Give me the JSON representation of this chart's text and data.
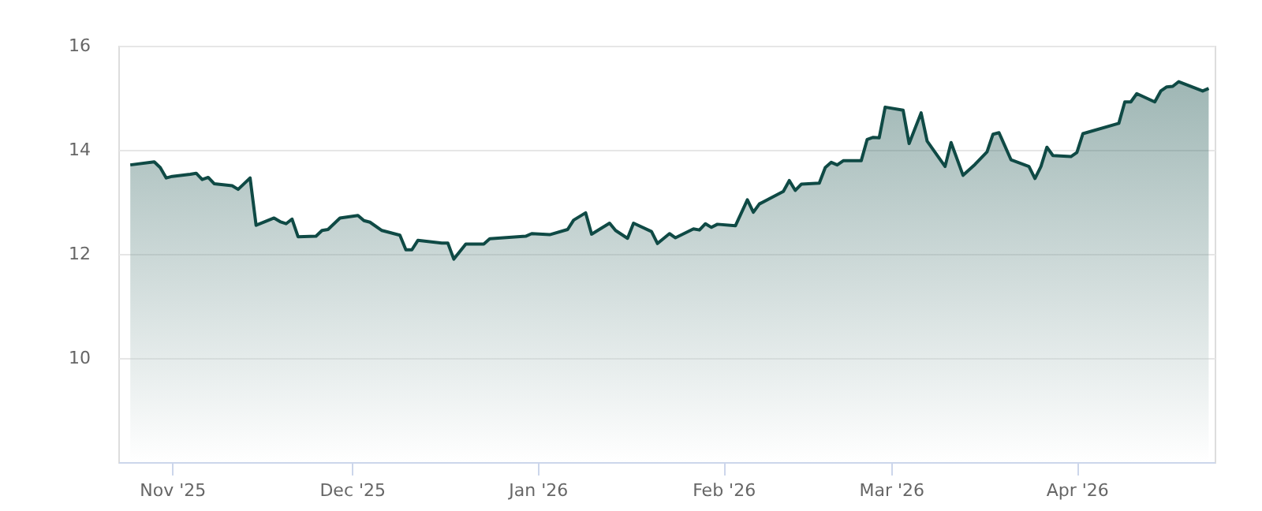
{
  "chart_data": {
    "type": "area",
    "x": [
      "2025-10-25",
      "2025-10-29",
      "2025-10-30",
      "2025-10-31",
      "2025-11-01",
      "2025-11-04",
      "2025-11-05",
      "2025-11-06",
      "2025-11-07",
      "2025-11-08",
      "2025-11-11",
      "2025-11-12",
      "2025-11-14",
      "2025-11-15",
      "2025-11-18",
      "2025-11-19",
      "2025-11-20",
      "2025-11-21",
      "2025-11-22",
      "2025-11-25",
      "2025-11-26",
      "2025-11-27",
      "2025-11-29",
      "2025-12-02",
      "2025-12-03",
      "2025-12-04",
      "2025-12-06",
      "2025-12-09",
      "2025-12-10",
      "2025-12-11",
      "2025-12-12",
      "2025-12-16",
      "2025-12-17",
      "2025-12-18",
      "2025-12-20",
      "2025-12-23",
      "2025-12-24",
      "2025-12-30",
      "2025-12-31",
      "2026-01-03",
      "2026-01-06",
      "2026-01-07",
      "2026-01-09",
      "2026-01-10",
      "2026-01-13",
      "2026-01-14",
      "2026-01-16",
      "2026-01-17",
      "2026-01-20",
      "2026-01-21",
      "2026-01-23",
      "2026-01-24",
      "2026-01-27",
      "2026-01-28",
      "2026-01-29",
      "2026-01-30",
      "2026-01-31",
      "2026-02-03",
      "2026-02-05",
      "2026-02-06",
      "2026-02-07",
      "2026-02-11",
      "2026-02-12",
      "2026-02-13",
      "2026-02-14",
      "2026-02-17",
      "2026-02-18",
      "2026-02-19",
      "2026-02-20",
      "2026-02-21",
      "2026-02-24",
      "2026-02-25",
      "2026-02-26",
      "2026-02-27",
      "2026-02-28",
      "2026-03-03",
      "2026-03-04",
      "2026-03-06",
      "2026-03-07",
      "2026-03-10",
      "2026-03-11",
      "2026-03-13",
      "2026-03-15",
      "2026-03-17",
      "2026-03-18",
      "2026-03-19",
      "2026-03-21",
      "2026-03-24",
      "2026-03-25",
      "2026-03-26",
      "2026-03-27",
      "2026-03-28",
      "2026-03-31",
      "2026-04-01",
      "2026-04-02",
      "2026-04-08",
      "2026-04-09",
      "2026-04-10",
      "2026-04-11",
      "2026-04-14",
      "2026-04-15",
      "2026-04-16",
      "2026-04-17",
      "2026-04-18",
      "2026-04-22",
      "2026-04-23"
    ],
    "series": [
      {
        "color": "#0f4a45",
        "values": [
          13.71,
          13.77,
          13.66,
          13.46,
          13.49,
          13.53,
          13.55,
          13.43,
          13.47,
          13.35,
          13.31,
          13.24,
          13.46,
          12.55,
          12.69,
          12.62,
          12.58,
          12.67,
          12.33,
          12.34,
          12.45,
          12.47,
          12.69,
          12.74,
          12.64,
          12.61,
          12.45,
          12.36,
          12.08,
          12.08,
          12.26,
          12.21,
          12.21,
          11.9,
          12.19,
          12.19,
          12.29,
          12.34,
          12.39,
          12.37,
          12.47,
          12.65,
          12.79,
          12.38,
          12.59,
          12.45,
          12.3,
          12.59,
          12.43,
          12.2,
          12.39,
          12.31,
          12.48,
          12.46,
          12.58,
          12.51,
          12.57,
          12.54,
          13.04,
          12.8,
          12.96,
          13.2,
          13.41,
          13.22,
          13.34,
          13.36,
          13.66,
          13.76,
          13.71,
          13.79,
          13.79,
          14.2,
          14.24,
          14.23,
          14.82,
          14.76,
          14.12,
          14.71,
          14.17,
          13.68,
          14.14,
          13.51,
          13.72,
          13.96,
          14.3,
          14.33,
          13.81,
          13.68,
          13.45,
          13.68,
          14.05,
          13.89,
          13.87,
          13.95,
          14.31,
          14.51,
          14.92,
          14.92,
          15.08,
          14.92,
          15.13,
          15.21,
          15.22,
          15.31,
          15.13,
          15.18
        ]
      }
    ],
    "xlim": [
      "2025-10-23",
      "2026-04-24"
    ],
    "xticks": [
      {
        "value": "2025-11-01",
        "label": "Nov '25"
      },
      {
        "value": "2025-12-01",
        "label": "Dec '25"
      },
      {
        "value": "2026-01-01",
        "label": "Jan '26"
      },
      {
        "value": "2026-02-01",
        "label": "Feb '26"
      },
      {
        "value": "2026-03-01",
        "label": "Mar '26"
      },
      {
        "value": "2026-04-01",
        "label": "Apr '26"
      }
    ],
    "ylim": [
      8,
      16
    ],
    "yticks": [
      10,
      12,
      14,
      16
    ],
    "grid": "y"
  }
}
